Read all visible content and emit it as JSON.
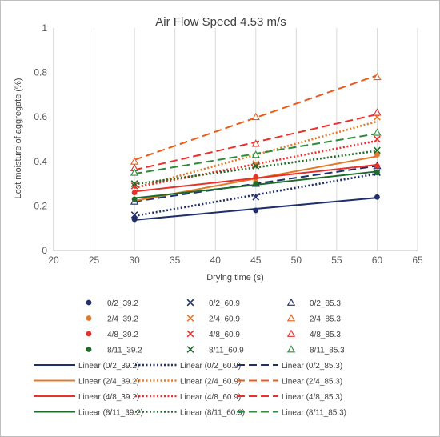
{
  "chart_data": {
    "type": "scatter",
    "title": "Air Flow Speed 4.53 m/s",
    "xlabel": "Drying time (s)",
    "ylabel": "Lost moisture of aggregate (%)",
    "xlim": [
      20,
      65
    ],
    "ylim": [
      0,
      1
    ],
    "xticks": [
      20,
      25,
      30,
      35,
      40,
      45,
      50,
      55,
      60,
      65
    ],
    "yticks": [
      0,
      0.2,
      0.4,
      0.6,
      0.8,
      1
    ],
    "x": [
      30,
      45,
      60
    ],
    "grid": "vertical",
    "legend_position": "bottom",
    "series": [
      {
        "name": "0/2_39.2",
        "marker": "circle",
        "color": "#1f2f6b",
        "values": [
          0.14,
          0.18,
          0.24
        ]
      },
      {
        "name": "0/2_60.9",
        "marker": "x",
        "color": "#1f2f6b",
        "values": [
          0.16,
          0.24,
          0.35
        ]
      },
      {
        "name": "0/2_85.3",
        "marker": "triangle",
        "color": "#1f2f6b",
        "values": [
          0.22,
          0.3,
          0.38
        ]
      },
      {
        "name": "2/4_39.2",
        "marker": "circle",
        "color": "#e07b2a",
        "values": [
          0.23,
          0.31,
          0.43
        ]
      },
      {
        "name": "2/4_60.9",
        "marker": "x",
        "color": "#e07b2a",
        "values": [
          0.3,
          0.39,
          0.6
        ]
      },
      {
        "name": "2/4_85.3",
        "marker": "triangle",
        "color": "#e85d1c",
        "values": [
          0.4,
          0.6,
          0.78
        ]
      },
      {
        "name": "4/8_39.2",
        "marker": "circle",
        "color": "#e8312b",
        "values": [
          0.26,
          0.33,
          0.38
        ]
      },
      {
        "name": "4/8_60.9",
        "marker": "x",
        "color": "#e8312b",
        "values": [
          0.29,
          0.38,
          0.5
        ]
      },
      {
        "name": "4/8_85.3",
        "marker": "triangle",
        "color": "#e8312b",
        "values": [
          0.37,
          0.48,
          0.62
        ]
      },
      {
        "name": "8/11_39.2",
        "marker": "circle",
        "color": "#1e6b2a",
        "values": [
          0.23,
          0.3,
          0.35
        ]
      },
      {
        "name": "8/11_60.9",
        "marker": "x",
        "color": "#1e6b2a",
        "values": [
          0.3,
          0.38,
          0.45
        ]
      },
      {
        "name": "8/11_85.3",
        "marker": "triangle",
        "color": "#2e8b3a",
        "values": [
          0.35,
          0.43,
          0.53
        ]
      }
    ],
    "trendlines": [
      {
        "name": "Linear (0/2_39.2)",
        "style": "solid",
        "color": "#1f2f6b",
        "y": [
          0.137,
          0.187,
          0.237
        ]
      },
      {
        "name": "Linear (0/2_60.9)",
        "style": "dotted",
        "color": "#1f2f6b",
        "y": [
          0.155,
          0.25,
          0.345
        ]
      },
      {
        "name": "Linear (0/2_85.3)",
        "style": "dashed",
        "color": "#1f2f6b",
        "y": [
          0.22,
          0.3,
          0.38
        ]
      },
      {
        "name": "Linear (2/4_39.2)",
        "style": "solid",
        "color": "#e07b2a",
        "y": [
          0.223,
          0.323,
          0.423
        ]
      },
      {
        "name": "Linear (2/4_60.9)",
        "style": "dotted",
        "color": "#e07b2a",
        "y": [
          0.28,
          0.43,
          0.58
        ]
      },
      {
        "name": "Linear (2/4_85.3)",
        "style": "dashed",
        "color": "#e85d1c",
        "y": [
          0.407,
          0.597,
          0.787
        ]
      },
      {
        "name": "Linear (4/8_39.2)",
        "style": "solid",
        "color": "#e8312b",
        "y": [
          0.265,
          0.325,
          0.385
        ]
      },
      {
        "name": "Linear (4/8_60.9)",
        "style": "dotted",
        "color": "#e8312b",
        "y": [
          0.283,
          0.388,
          0.493
        ]
      },
      {
        "name": "Linear (4/8_85.3)",
        "style": "dashed",
        "color": "#e8312b",
        "y": [
          0.362,
          0.487,
          0.612
        ]
      },
      {
        "name": "Linear (8/11_39.2)",
        "style": "solid",
        "color": "#1e6b2a",
        "y": [
          0.235,
          0.295,
          0.355
        ]
      },
      {
        "name": "Linear (8/11_60.9)",
        "style": "dotted",
        "color": "#1e6b2a",
        "y": [
          0.298,
          0.373,
          0.448
        ]
      },
      {
        "name": "Linear (8/11_85.3)",
        "style": "dashed",
        "color": "#2e8b3a",
        "y": [
          0.345,
          0.435,
          0.525
        ]
      }
    ]
  }
}
